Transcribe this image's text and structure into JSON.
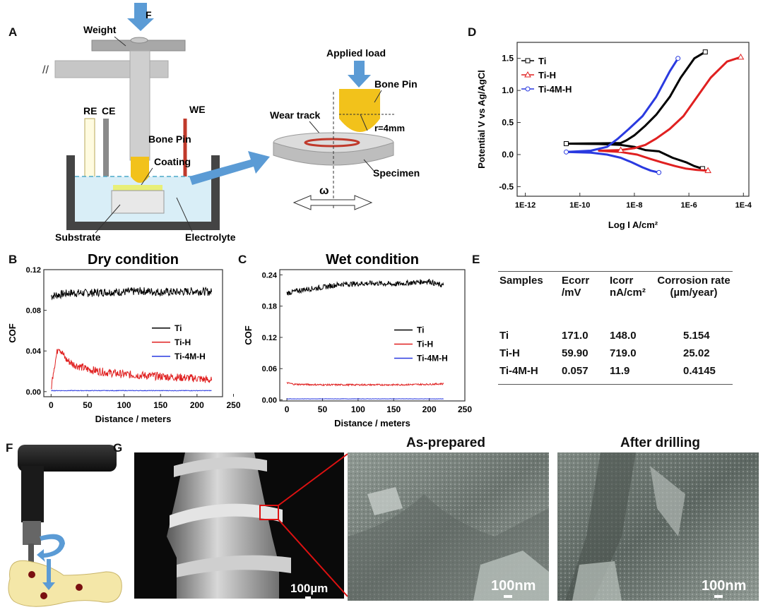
{
  "panels": {
    "A": {
      "letter": "A",
      "force": "F",
      "weight": "Weight",
      "re": "RE",
      "ce": "CE",
      "we": "WE",
      "bone_pin": "Bone Pin",
      "coating": "Coating",
      "substrate": "Substrate",
      "electrolyte": "Electrolyte",
      "applied_load": "Applied load",
      "bone_pin_2": "Bone Pin",
      "wear_track": "Wear track",
      "radius": "r=4mm",
      "specimen": "Specimen",
      "omega": "ω"
    },
    "B": {
      "letter": "B",
      "title": "Dry condition"
    },
    "C": {
      "letter": "C",
      "title": "Wet condition"
    },
    "D": {
      "letter": "D"
    },
    "E": {
      "letter": "E",
      "headers": [
        [
          "Samples",
          ""
        ],
        [
          "Ecorr",
          "/mV"
        ],
        [
          "Icorr",
          "nA/cm²"
        ],
        [
          "Corrosion rate",
          "(µm/year)"
        ]
      ],
      "rows": [
        [
          "Ti",
          "171.0",
          "148.0",
          "5.154"
        ],
        [
          "Ti-H",
          "59.90",
          "719.0",
          "25.02"
        ],
        [
          "Ti-4M-H",
          "0.057",
          "11.9",
          "0.4145"
        ]
      ]
    },
    "F": {
      "letter": "F"
    },
    "G": {
      "letter": "G",
      "as_prepared": "As-prepared",
      "after_drilling": "After drilling",
      "scale_1": "100µm",
      "scale_2": "100nm",
      "scale_3": "100nm"
    }
  },
  "colors": {
    "ti": "#000000",
    "ti_h": "#e02020",
    "ti_4m_h": "#2a3ae0",
    "arrow": "#5b9bd5"
  },
  "chart_data": [
    {
      "type": "line",
      "title": "Dry condition",
      "xlabel": "Distance / meters",
      "ylabel": "COF",
      "xlim": [
        -10,
        235
      ],
      "ylim": [
        -0.005,
        0.12
      ],
      "xticks": [
        "0",
        "50",
        "100",
        "150",
        "200",
        "250"
      ],
      "yticks": [
        "0.00",
        "0.04",
        "0.08",
        "0.12"
      ],
      "legend": "right-middle",
      "series": [
        {
          "name": "Ti",
          "x": [
            0,
            25,
            50,
            75,
            100,
            125,
            150,
            175,
            200,
            220
          ],
          "y": [
            0.094,
            0.097,
            0.097,
            0.098,
            0.098,
            0.099,
            0.098,
            0.098,
            0.099,
            0.098
          ]
        },
        {
          "name": "Ti-H",
          "x": [
            0,
            3,
            10,
            20,
            30,
            50,
            75,
            100,
            125,
            150,
            175,
            200,
            220
          ],
          "y": [
            0.002,
            0.02,
            0.045,
            0.032,
            0.027,
            0.022,
            0.019,
            0.017,
            0.016,
            0.015,
            0.014,
            0.013,
            0.011
          ]
        },
        {
          "name": "Ti-4M-H",
          "x": [
            0,
            220
          ],
          "y": [
            0.001,
            0.001
          ]
        }
      ]
    },
    {
      "type": "line",
      "title": "Wet condition",
      "xlabel": "Distance / meters",
      "ylabel": "COF",
      "xlim": [
        -10,
        250
      ],
      "ylim": [
        -0.002,
        0.25
      ],
      "xticks": [
        "0",
        "50",
        "100",
        "150",
        "200",
        "250"
      ],
      "yticks": [
        "0.00",
        "0.06",
        "0.12",
        "0.18",
        "0.24"
      ],
      "legend": "right-middle",
      "series": [
        {
          "name": "Ti",
          "x": [
            0,
            25,
            50,
            75,
            100,
            125,
            150,
            175,
            200,
            210,
            220
          ],
          "y": [
            0.205,
            0.212,
            0.216,
            0.222,
            0.223,
            0.224,
            0.222,
            0.225,
            0.228,
            0.222,
            0.22
          ]
        },
        {
          "name": "Ti-H",
          "x": [
            0,
            10,
            50,
            100,
            150,
            200,
            220
          ],
          "y": [
            0.033,
            0.03,
            0.029,
            0.029,
            0.029,
            0.03,
            0.031
          ]
        },
        {
          "name": "Ti-4M-H",
          "x": [
            0,
            220
          ],
          "y": [
            0.002,
            0.002
          ]
        }
      ]
    },
    {
      "type": "line",
      "xlabel": "Log I A/cm²",
      "ylabel": "Potential V vs Ag/AgCl",
      "xscale": "log",
      "xlim_log10": [
        -12.3,
        -3.8
      ],
      "ylim": [
        -0.65,
        1.75
      ],
      "xticks": [
        "1E-12",
        "1E-10",
        "1E-8",
        "1E-6",
        "1E-4"
      ],
      "yticks": [
        "-0.5",
        "0.0",
        "0.5",
        "1.0",
        "1.5"
      ],
      "legend": "top-left",
      "series": [
        {
          "name": "Ti",
          "log_i": [
            -5.4,
            -5.8,
            -6.3,
            -6.7,
            -7.2,
            -7.6,
            -8.0,
            -8.3,
            -8.5,
            -9.3,
            -10.5,
            -9.3,
            -8.5,
            -8.0,
            -7.6,
            -7.1,
            -6.6,
            -6.1,
            -5.8,
            -5.5
          ],
          "e": [
            1.6,
            1.5,
            1.2,
            0.9,
            0.62,
            0.45,
            0.3,
            0.22,
            0.18,
            0.175,
            0.17,
            0.165,
            0.15,
            0.12,
            0.07,
            0.05,
            -0.05,
            -0.12,
            -0.18,
            -0.22
          ]
        },
        {
          "name": "Ti-H",
          "log_i": [
            -4.1,
            -4.6,
            -5.2,
            -5.7,
            -6.2,
            -6.7,
            -7.2,
            -7.6,
            -8.0,
            -8.5,
            -9.3,
            -8.5,
            -7.9,
            -7.4,
            -7.0,
            -6.5,
            -6.1,
            -5.7,
            -5.3
          ],
          "e": [
            1.52,
            1.45,
            1.2,
            0.9,
            0.6,
            0.4,
            0.25,
            0.15,
            0.1,
            0.07,
            0.06,
            0.04,
            0.0,
            -0.07,
            -0.12,
            -0.18,
            -0.22,
            -0.24,
            -0.25
          ]
        },
        {
          "name": "Ti-4M-H",
          "log_i": [
            -6.4,
            -6.7,
            -7.2,
            -7.7,
            -8.2,
            -8.6,
            -9.0,
            -9.6,
            -10.5,
            -9.6,
            -9.0,
            -8.5,
            -8.1,
            -7.7,
            -7.4,
            -7.1
          ],
          "e": [
            1.5,
            1.3,
            0.9,
            0.6,
            0.4,
            0.25,
            0.12,
            0.06,
            0.04,
            0.03,
            0.0,
            -0.05,
            -0.12,
            -0.2,
            -0.25,
            -0.28
          ]
        }
      ]
    }
  ]
}
